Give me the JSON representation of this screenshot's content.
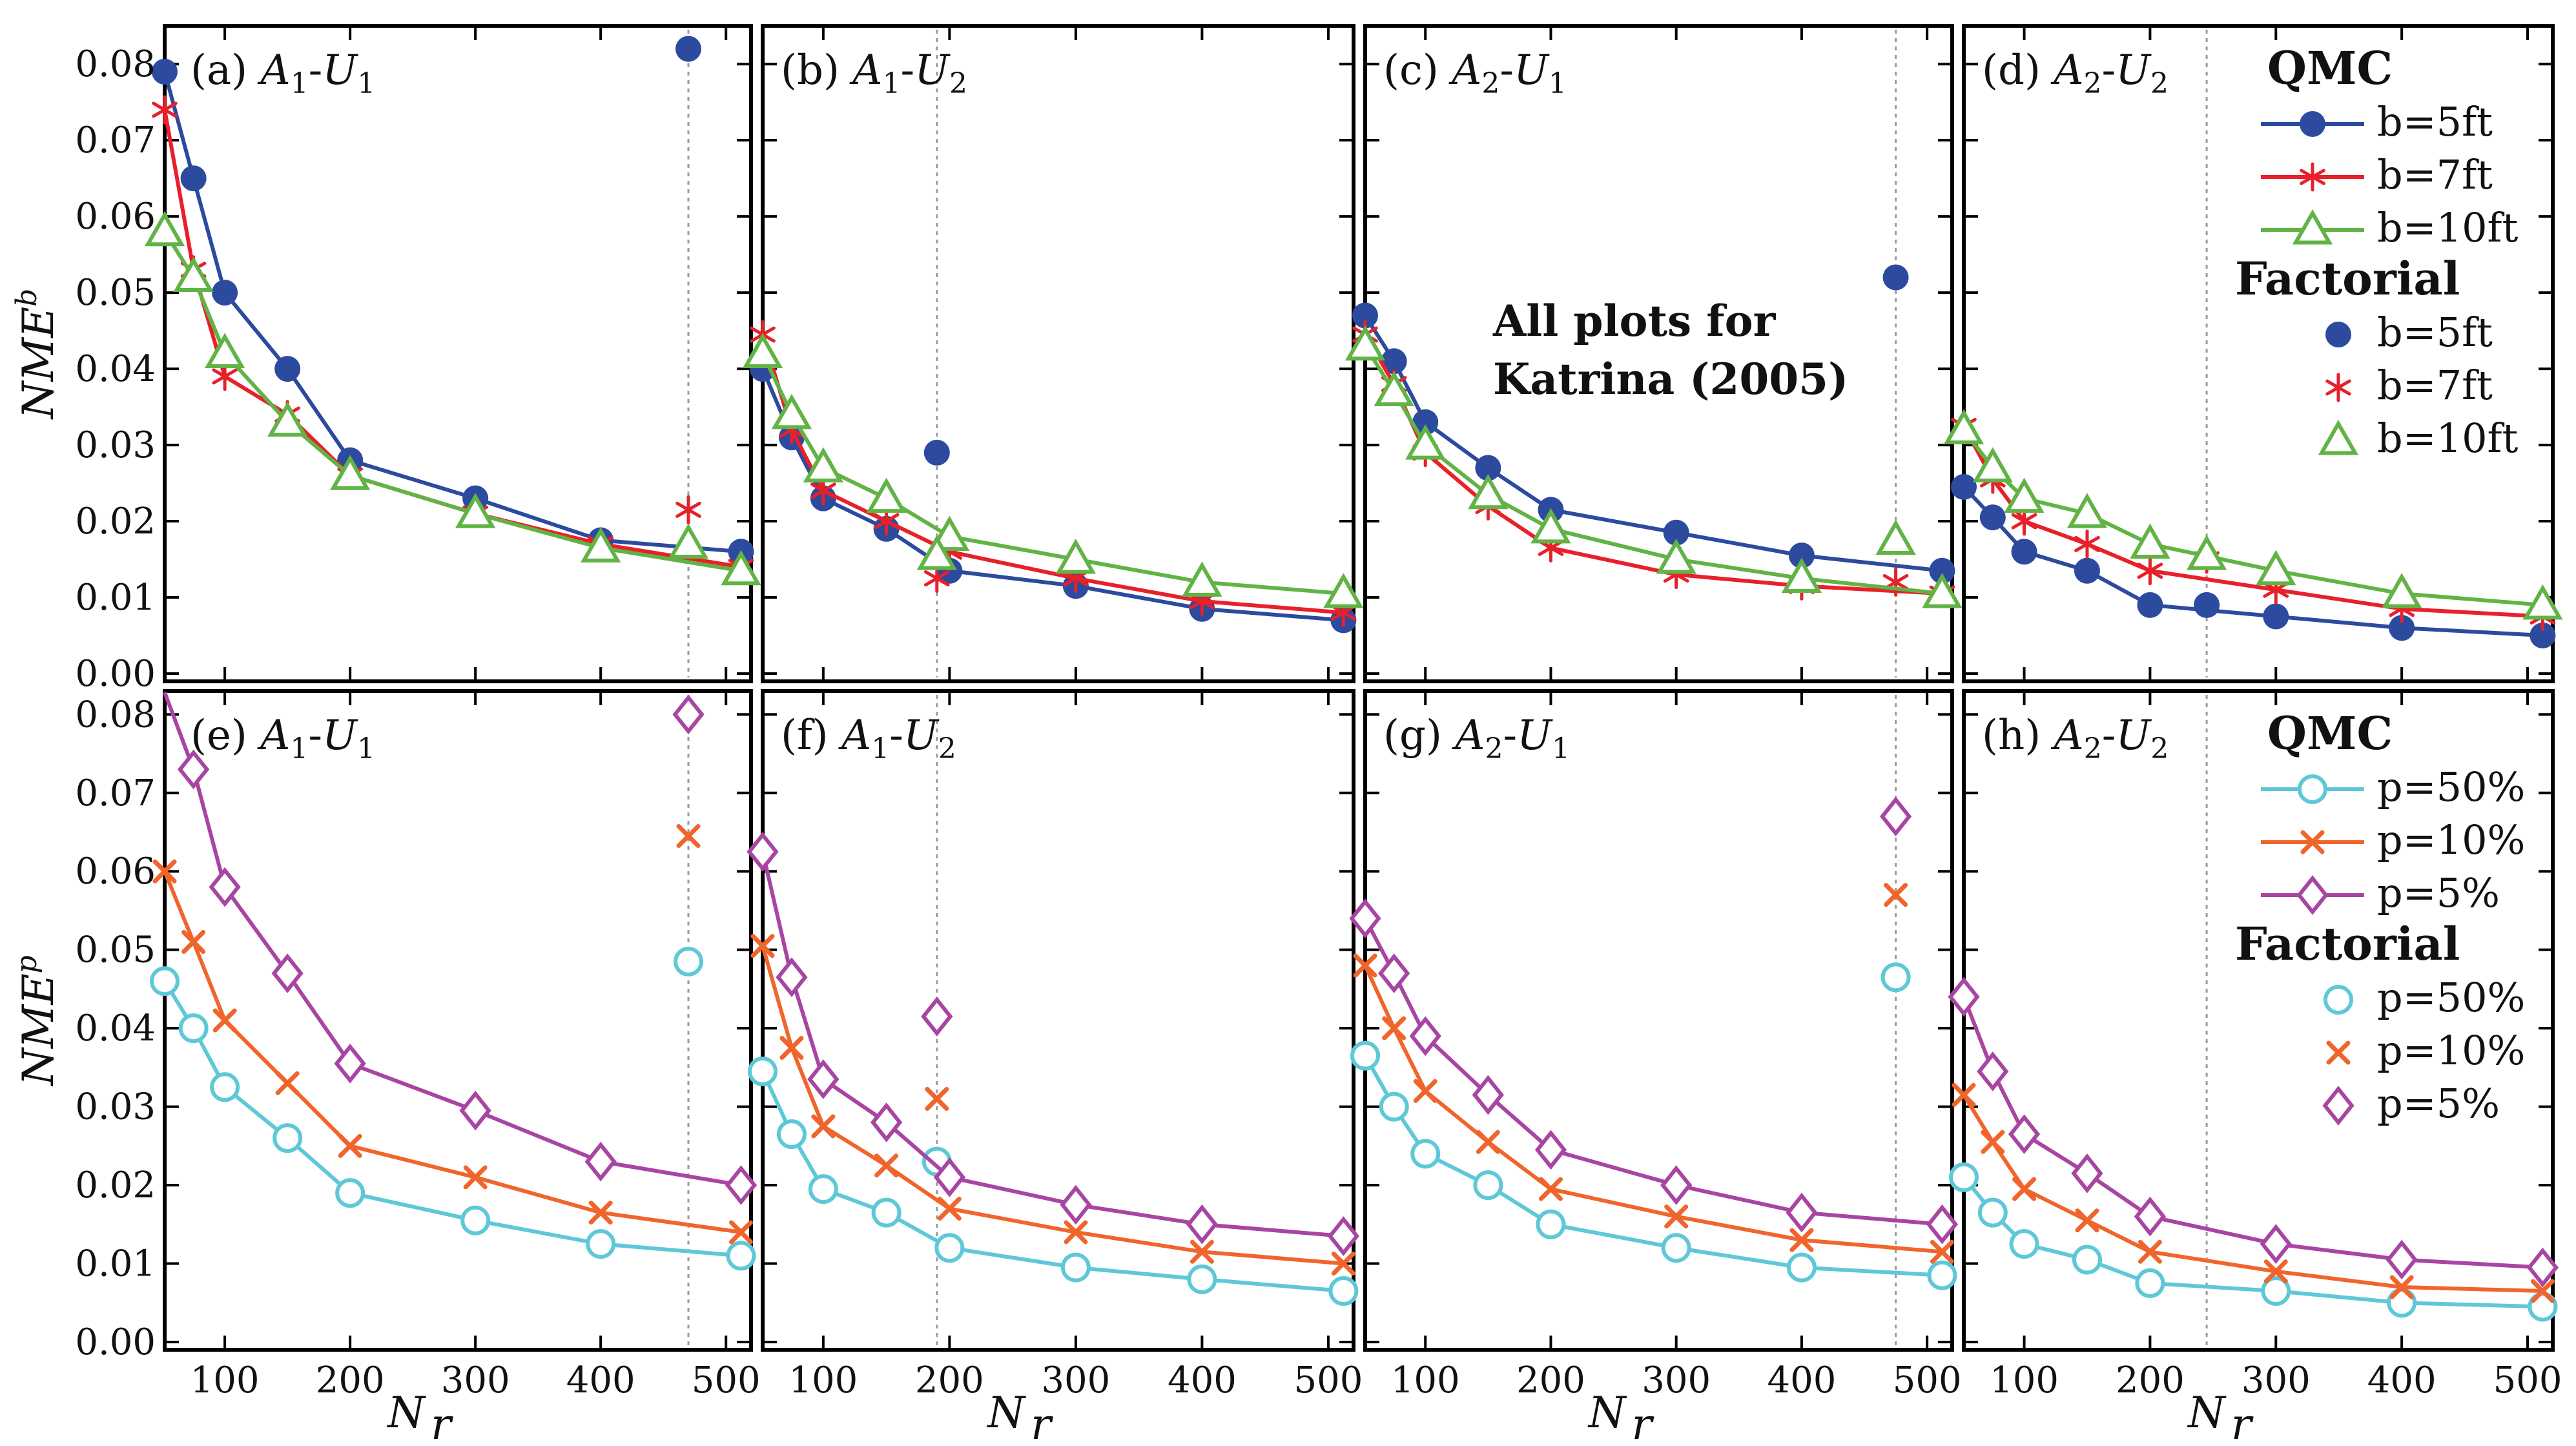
{
  "figure": {
    "note": [
      "All plots for",
      "Katrina (2005)"
    ],
    "x_label_main": "N",
    "x_label_sub": "r"
  },
  "chart_data": [
    {
      "group": "top",
      "type": "line",
      "ylabel": "NME^b",
      "ylim": [
        0,
        0.084
      ],
      "xlim": [
        52,
        520
      ],
      "yticks": [
        0,
        0.01,
        0.02,
        0.03,
        0.04,
        0.05,
        0.06,
        0.07,
        0.08
      ],
      "ytick_labels": [
        "0.00",
        "0.01",
        "0.02",
        "0.03",
        "0.04",
        "0.05",
        "0.06",
        "0.07",
        "0.08"
      ],
      "x_qmc": [
        50,
        75,
        100,
        150,
        200,
        300,
        400,
        512
      ],
      "legend": {
        "qmc_title": "QMC",
        "factorial_title": "Factorial",
        "labels": [
          "b=5ft",
          "b=7ft",
          "b=10ft"
        ]
      },
      "series_style": [
        {
          "name": "b=5ft",
          "color": "#2c4a9e",
          "marker": "dot"
        },
        {
          "name": "b=7ft",
          "color": "#e8202a",
          "marker": "star"
        },
        {
          "name": "b=10ft",
          "color": "#62b346",
          "marker": "triangle"
        }
      ],
      "panels": [
        {
          "title": "(a)",
          "math": [
            [
              "A",
              "1"
            ],
            [
              "U",
              "1"
            ]
          ],
          "factorial_x": 470,
          "series": [
            {
              "name": "b=5ft",
              "values": [
                0.079,
                0.065,
                0.05,
                0.04,
                0.028,
                0.023,
                0.0175,
                0.016
              ],
              "factorial": 0.082
            },
            {
              "name": "b=7ft",
              "values": [
                0.074,
                0.053,
                0.039,
                0.034,
                0.026,
                0.021,
                0.017,
                0.014
              ],
              "factorial": 0.0215
            },
            {
              "name": "b=10ft",
              "values": [
                0.058,
                0.052,
                0.042,
                0.033,
                0.026,
                0.021,
                0.0165,
                0.0135
              ],
              "factorial": 0.017
            }
          ]
        },
        {
          "title": "(b)",
          "math": [
            [
              "A",
              "1"
            ],
            [
              "U",
              "2"
            ]
          ],
          "factorial_x": 190,
          "series": [
            {
              "name": "b=5ft",
              "values": [
                0.04,
                0.031,
                0.023,
                0.019,
                0.0135,
                0.0115,
                0.0085,
                0.007
              ],
              "factorial": 0.029
            },
            {
              "name": "b=7ft",
              "values": [
                0.0445,
                0.032,
                0.024,
                0.02,
                0.016,
                0.0125,
                0.0095,
                0.008
              ],
              "factorial": 0.0125
            },
            {
              "name": "b=10ft",
              "values": [
                0.042,
                0.034,
                0.027,
                0.023,
                0.018,
                0.015,
                0.012,
                0.0105
              ],
              "factorial": 0.0155
            }
          ]
        },
        {
          "title": "(c)",
          "math": [
            [
              "A",
              "2"
            ],
            [
              "U",
              "1"
            ]
          ],
          "factorial_x": 475,
          "series": [
            {
              "name": "b=5ft",
              "values": [
                0.047,
                0.041,
                0.033,
                0.027,
                0.0215,
                0.0185,
                0.0155,
                0.0135
              ],
              "factorial": 0.052
            },
            {
              "name": "b=7ft",
              "values": [
                0.0445,
                0.038,
                0.029,
                0.022,
                0.0165,
                0.013,
                0.0115,
                0.0105
              ],
              "factorial": 0.012
            },
            {
              "name": "b=10ft",
              "values": [
                0.043,
                0.037,
                0.03,
                0.0235,
                0.019,
                0.015,
                0.0125,
                0.0105
              ],
              "factorial": 0.0175
            }
          ]
        },
        {
          "title": "(d)",
          "math": [
            [
              "A",
              "2"
            ],
            [
              "U",
              "2"
            ]
          ],
          "factorial_x": 245,
          "series": [
            {
              "name": "b=5ft",
              "values": [
                0.0245,
                0.0205,
                0.016,
                0.0135,
                0.009,
                0.0075,
                0.006,
                0.005
              ],
              "factorial": 0.009
            },
            {
              "name": "b=7ft",
              "values": [
                0.0325,
                0.0255,
                0.02,
                0.017,
                0.0135,
                0.011,
                0.0085,
                0.0075
              ],
              "factorial": 0.015
            },
            {
              "name": "b=10ft",
              "values": [
                0.032,
                0.027,
                0.023,
                0.021,
                0.017,
                0.0135,
                0.0105,
                0.009
              ],
              "factorial": 0.0155
            }
          ]
        }
      ]
    },
    {
      "group": "bottom",
      "type": "line",
      "ylabel": "NME^p",
      "ylim": [
        0,
        0.082
      ],
      "xlim": [
        52,
        520
      ],
      "yticks": [
        0,
        0.01,
        0.02,
        0.03,
        0.04,
        0.05,
        0.06,
        0.07,
        0.08
      ],
      "ytick_labels": [
        "0.00",
        "0.01",
        "0.02",
        "0.03",
        "0.04",
        "0.05",
        "0.06",
        "0.07",
        "0.08"
      ],
      "xticks": [
        100,
        200,
        300,
        400,
        500
      ],
      "xtick_labels": [
        "100",
        "200",
        "300",
        "400",
        "500"
      ],
      "x_qmc": [
        50,
        75,
        100,
        150,
        200,
        300,
        400,
        512
      ],
      "legend": {
        "qmc_title": "QMC",
        "factorial_title": "Factorial",
        "labels": [
          "p=50%",
          "p=10%",
          "p=5%"
        ]
      },
      "series_style": [
        {
          "name": "p=50%",
          "color": "#5ec8d8",
          "marker": "circle"
        },
        {
          "name": "p=10%",
          "color": "#f0652b",
          "marker": "cross"
        },
        {
          "name": "p=5%",
          "color": "#a845a3",
          "marker": "diamond"
        }
      ],
      "panels": [
        {
          "title": "(e)",
          "math": [
            [
              "A",
              "1"
            ],
            [
              "U",
              "1"
            ]
          ],
          "factorial_x": 470,
          "series": [
            {
              "name": "p=50%",
              "values": [
                0.046,
                0.04,
                0.0325,
                0.026,
                0.019,
                0.0155,
                0.0125,
                0.011
              ],
              "factorial": 0.0485
            },
            {
              "name": "p=10%",
              "values": [
                0.06,
                0.051,
                0.041,
                0.033,
                0.025,
                0.021,
                0.0165,
                0.014
              ],
              "factorial": 0.0645
            },
            {
              "name": "p=5%",
              "values": [
                0.085,
                0.073,
                0.058,
                0.047,
                0.0355,
                0.0295,
                0.023,
                0.02
              ],
              "factorial": 0.08
            }
          ]
        },
        {
          "title": "(f)",
          "math": [
            [
              "A",
              "1"
            ],
            [
              "U",
              "2"
            ]
          ],
          "factorial_x": 190,
          "series": [
            {
              "name": "p=50%",
              "values": [
                0.0345,
                0.0265,
                0.0195,
                0.0165,
                0.012,
                0.0095,
                0.008,
                0.0065
              ],
              "factorial": 0.023
            },
            {
              "name": "p=10%",
              "values": [
                0.0505,
                0.0375,
                0.0275,
                0.0225,
                0.017,
                0.014,
                0.0115,
                0.01
              ],
              "factorial": 0.031
            },
            {
              "name": "p=5%",
              "values": [
                0.0625,
                0.0465,
                0.0335,
                0.028,
                0.021,
                0.0175,
                0.015,
                0.0135
              ],
              "factorial": 0.0415
            }
          ]
        },
        {
          "title": "(g)",
          "math": [
            [
              "A",
              "2"
            ],
            [
              "U",
              "1"
            ]
          ],
          "factorial_x": 475,
          "series": [
            {
              "name": "p=50%",
              "values": [
                0.0365,
                0.03,
                0.024,
                0.02,
                0.015,
                0.012,
                0.0095,
                0.0085
              ],
              "factorial": 0.0465
            },
            {
              "name": "p=10%",
              "values": [
                0.048,
                0.04,
                0.032,
                0.0255,
                0.0195,
                0.016,
                0.013,
                0.0115
              ],
              "factorial": 0.057
            },
            {
              "name": "p=5%",
              "values": [
                0.054,
                0.047,
                0.039,
                0.0315,
                0.0245,
                0.02,
                0.0165,
                0.015
              ],
              "factorial": 0.067
            }
          ]
        },
        {
          "title": "(h)",
          "math": [
            [
              "A",
              "2"
            ],
            [
              "U",
              "2"
            ]
          ],
          "factorial_x": 245,
          "series": [
            {
              "name": "p=50%",
              "values": [
                0.021,
                0.0165,
                0.0125,
                0.0105,
                0.0075,
                0.0065,
                0.005,
                0.0045
              ],
              "factorial": null
            },
            {
              "name": "p=10%",
              "values": [
                0.0315,
                0.0255,
                0.0195,
                0.0155,
                0.0115,
                0.009,
                0.007,
                0.0065
              ],
              "factorial": null
            },
            {
              "name": "p=5%",
              "values": [
                0.044,
                0.0345,
                0.0265,
                0.0215,
                0.016,
                0.0125,
                0.0105,
                0.0095
              ],
              "factorial": null
            }
          ]
        }
      ]
    }
  ]
}
